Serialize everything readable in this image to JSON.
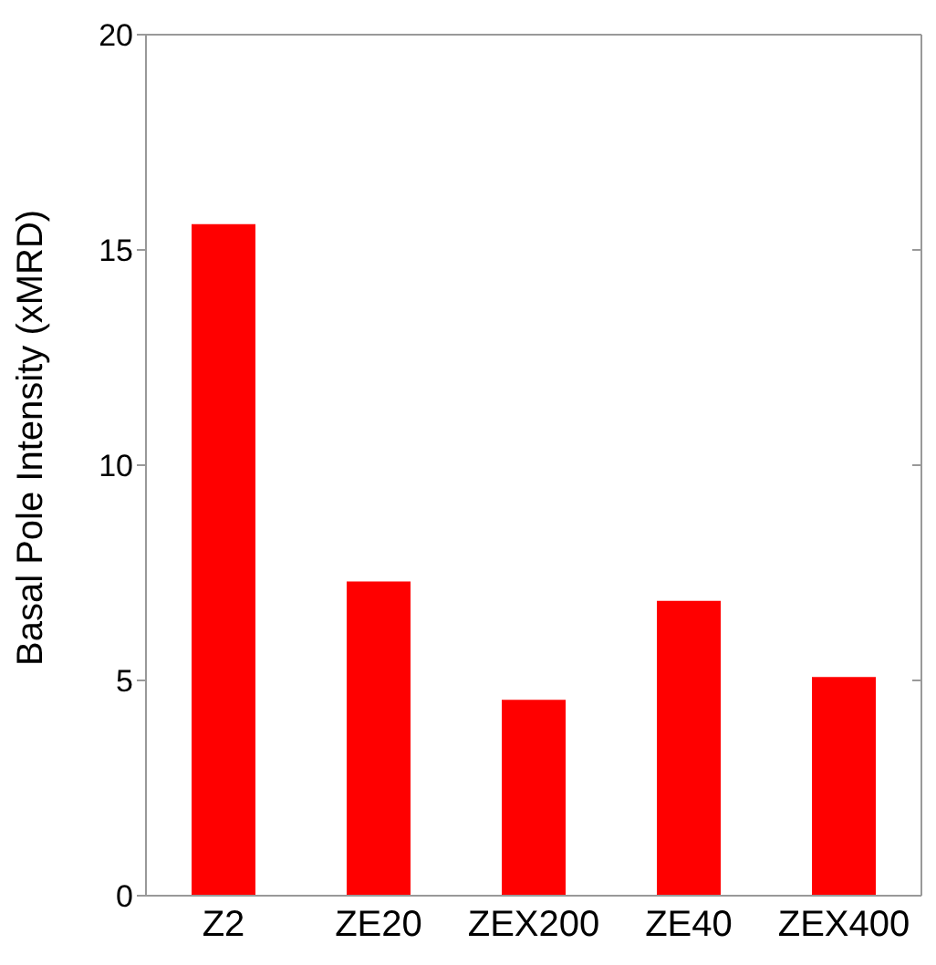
{
  "chart_data": {
    "type": "bar",
    "ylabel": "Basal Pole Intensity (xMRD)",
    "categories": [
      "Z2",
      "ZE20",
      "ZEX200",
      "ZE40",
      "ZEX400"
    ],
    "values": [
      15.6,
      7.3,
      4.55,
      6.85,
      5.08
    ],
    "color": "#ff0000",
    "ylim": [
      0,
      20
    ],
    "yticks": [
      0,
      5,
      10,
      15,
      20
    ],
    "grid": false,
    "legend": false
  }
}
